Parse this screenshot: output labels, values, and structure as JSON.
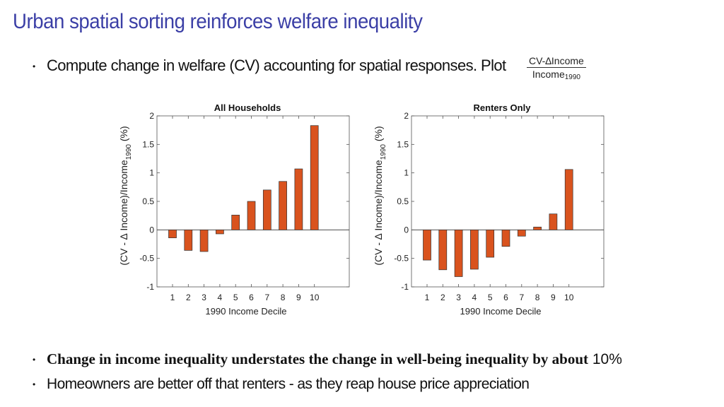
{
  "slide": {
    "title": "Urban spatial sorting reinforces welfare  inequality",
    "bullet1": "Compute change in welfare  (CV) accounting for spatial responses.  Plot",
    "fraction_num": "CV-∆Income",
    "fraction_den": "Income",
    "fraction_den_sub": "1990",
    "bullet2_bold": "Change in income inequality understates the change in well-being inequality by about",
    "bullet2_tail": "10%",
    "bullet3": "Homeowners are better off that renters  - as they reap house price appreciation",
    "bullet_symbol": "•"
  },
  "chart_data": [
    {
      "type": "bar",
      "title": "All Households",
      "xlabel": "1990 Income Decile",
      "ylabel_main": "(CV - ∆ Income)/Income",
      "ylabel_sub": "1990",
      "ylabel_tail": " (%)",
      "categories": [
        "1",
        "2",
        "3",
        "4",
        "5",
        "6",
        "7",
        "8",
        "9",
        "10"
      ],
      "values": [
        -0.14,
        -0.36,
        -0.38,
        -0.07,
        0.26,
        0.5,
        0.7,
        0.85,
        1.07,
        1.83
      ],
      "ylim": [
        -1,
        2
      ],
      "yticks": [
        -1,
        -0.5,
        0,
        0.5,
        1,
        1.5,
        2
      ],
      "ytick_labels": [
        "-1",
        "-0.5",
        "0",
        "0.5",
        "1",
        "1.5",
        "2"
      ],
      "bar_color": "#d9531e"
    },
    {
      "type": "bar",
      "title": "Renters Only",
      "xlabel": "1990 Income Decile",
      "ylabel_main": "(CV - ∆ Income)/Income",
      "ylabel_sub": "1990",
      "ylabel_tail": " (%)",
      "categories": [
        "1",
        "2",
        "3",
        "4",
        "5",
        "6",
        "7",
        "8",
        "9",
        "10"
      ],
      "values": [
        -0.53,
        -0.7,
        -0.82,
        -0.69,
        -0.48,
        -0.29,
        -0.11,
        0.05,
        0.28,
        1.06
      ],
      "ylim": [
        -1,
        2
      ],
      "yticks": [
        -1,
        -0.5,
        0,
        0.5,
        1,
        1.5,
        2
      ],
      "ytick_labels": [
        "-1",
        "-0.5",
        "0",
        "0.5",
        "1",
        "1.5",
        "2"
      ],
      "bar_color": "#d9531e"
    }
  ]
}
